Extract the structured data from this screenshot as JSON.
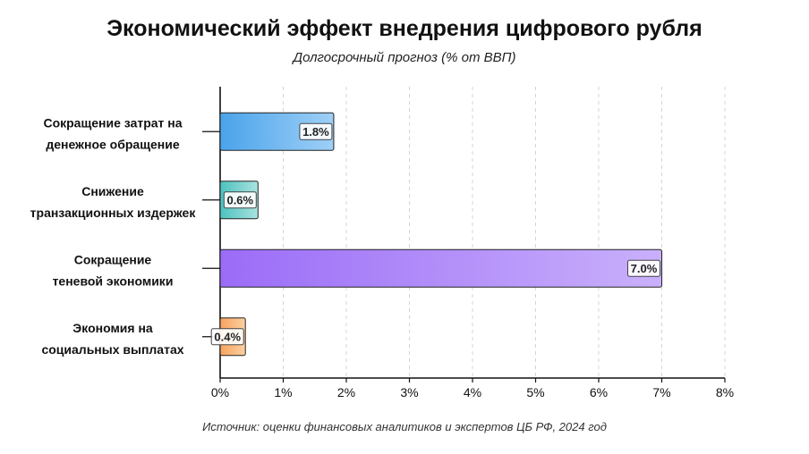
{
  "title": "Экономический эффект внедрения цифрового рубля",
  "subtitle": "Долгосрочный прогноз (% от ВВП)",
  "source": "Источник: оценки финансовых аналитиков и экспертов ЦБ РФ, 2024 год",
  "chart_data": {
    "type": "bar",
    "orientation": "horizontal",
    "title": "Экономический эффект внедрения цифрового рубля",
    "subtitle": "Долгосрочный прогноз (% от ВВП)",
    "categories": [
      [
        "Сокращение затрат на",
        "денежное обращение"
      ],
      [
        "Снижение",
        "транзакционных издержек"
      ],
      [
        "Сокращение",
        "теневой экономики"
      ],
      [
        "Экономия на",
        "социальных выплатах"
      ]
    ],
    "values": [
      1.8,
      0.6,
      7.0,
      0.4
    ],
    "value_labels": [
      "1.8%",
      "0.6%",
      "7.0%",
      "0.4%"
    ],
    "xlim": [
      0,
      8
    ],
    "xticks": [
      "0%",
      "1%",
      "2%",
      "3%",
      "4%",
      "5%",
      "6%",
      "7%",
      "8%"
    ],
    "grid": "vertical dashed",
    "colors": [
      [
        "#4aa3ea",
        "#9fd0f7"
      ],
      [
        "#4cc2bf",
        "#a9e3e0"
      ],
      [
        "#9b6cf7",
        "#c9b0fb"
      ],
      [
        "#f7a35c",
        "#fbd0a2"
      ]
    ]
  }
}
